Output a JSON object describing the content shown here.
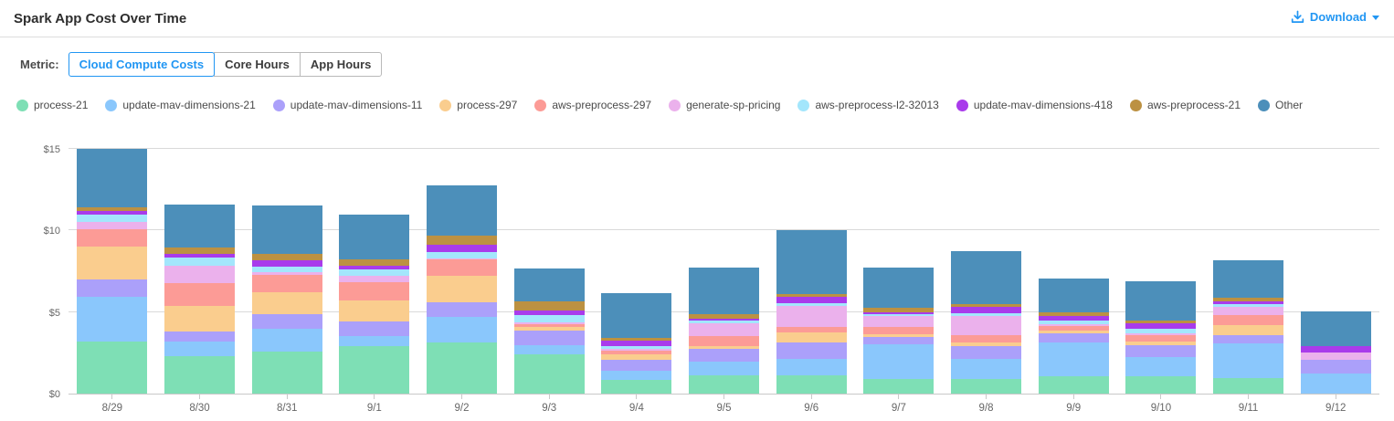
{
  "header": {
    "title": "Spark App Cost Over Time",
    "download_label": "Download"
  },
  "metric": {
    "label": "Metric:",
    "options": [
      {
        "label": "Cloud Compute Costs",
        "active": true
      },
      {
        "label": "Core Hours",
        "active": false
      },
      {
        "label": "App Hours",
        "active": false
      }
    ]
  },
  "colors": {
    "accent_blue": "#2196f3",
    "gridline": "#d9d9d9",
    "axis_text": "#666666"
  },
  "chart_data": {
    "type": "bar",
    "stacked": true,
    "title": "Spark App Cost Over Time",
    "xlabel": "",
    "ylabel": "",
    "ylim": [
      0,
      15.85
    ],
    "yticks": [
      0,
      5,
      10,
      15
    ],
    "ytick_labels": [
      "$0",
      "$5",
      "$10",
      "$15"
    ],
    "grid": true,
    "legend_position": "top",
    "categories": [
      "8/29",
      "8/30",
      "8/31",
      "9/1",
      "9/2",
      "9/3",
      "9/4",
      "9/5",
      "9/6",
      "9/7",
      "9/8",
      "9/9",
      "9/10",
      "9/11",
      "9/12"
    ],
    "series": [
      {
        "name": "process-21",
        "color": "#7EDFB5",
        "values": [
          3.2,
          2.3,
          2.55,
          2.9,
          3.15,
          2.4,
          0.86,
          1.12,
          1.12,
          0.89,
          0.89,
          1.07,
          1.05,
          0.95,
          0.0
        ]
      },
      {
        "name": "update-mav-dimensions-21",
        "color": "#8AC7FC",
        "values": [
          2.75,
          0.9,
          1.4,
          0.65,
          1.55,
          0.56,
          0.56,
          0.85,
          1.0,
          2.11,
          1.23,
          2.07,
          1.2,
          2.12,
          1.25
        ]
      },
      {
        "name": "update-mav-dimensions-11",
        "color": "#ABA0FA",
        "values": [
          1.05,
          0.6,
          0.9,
          0.9,
          0.9,
          0.9,
          0.66,
          0.75,
          1.0,
          0.47,
          0.79,
          0.56,
          0.7,
          0.51,
          0.8
        ]
      },
      {
        "name": "process-297",
        "color": "#FACD8E",
        "values": [
          2.0,
          1.55,
          1.35,
          1.25,
          1.6,
          0.23,
          0.35,
          0.2,
          0.62,
          0.19,
          0.23,
          0.18,
          0.25,
          0.62,
          0.0
        ]
      },
      {
        "name": "aws-preprocess-297",
        "color": "#FC9B96",
        "values": [
          1.1,
          1.45,
          1.1,
          1.15,
          1.05,
          0.19,
          0.23,
          0.6,
          0.37,
          0.42,
          0.43,
          0.25,
          0.38,
          0.63,
          0.0
        ]
      },
      {
        "name": "generate-sp-pricing",
        "color": "#EBB1EC",
        "values": [
          0.45,
          1.05,
          0.12,
          0.4,
          0.05,
          0.11,
          0.11,
          0.8,
          1.26,
          0.67,
          1.18,
          0.13,
          0.13,
          0.49,
          0.45
        ]
      },
      {
        "name": "aws-preprocess-l2-32013",
        "color": "#A3E6FC",
        "values": [
          0.45,
          0.5,
          0.35,
          0.37,
          0.38,
          0.45,
          0.15,
          0.15,
          0.18,
          0.13,
          0.19,
          0.24,
          0.24,
          0.19,
          0.0
        ]
      },
      {
        "name": "update-mav-dimensions-418",
        "color": "#A93BEB",
        "values": [
          0.2,
          0.2,
          0.4,
          0.23,
          0.45,
          0.24,
          0.32,
          0.15,
          0.38,
          0.13,
          0.37,
          0.25,
          0.38,
          0.17,
          0.4
        ]
      },
      {
        "name": "aws-preprocess-21",
        "color": "#BC9142",
        "values": [
          0.25,
          0.4,
          0.38,
          0.38,
          0.57,
          0.57,
          0.16,
          0.26,
          0.19,
          0.25,
          0.19,
          0.26,
          0.18,
          0.19,
          0.0
        ]
      },
      {
        "name": "Other",
        "color": "#4C8FBA",
        "values": [
          3.55,
          2.65,
          3.0,
          2.72,
          3.05,
          2.05,
          2.75,
          2.87,
          3.88,
          2.49,
          3.25,
          2.04,
          2.39,
          2.33,
          2.15
        ]
      }
    ]
  }
}
